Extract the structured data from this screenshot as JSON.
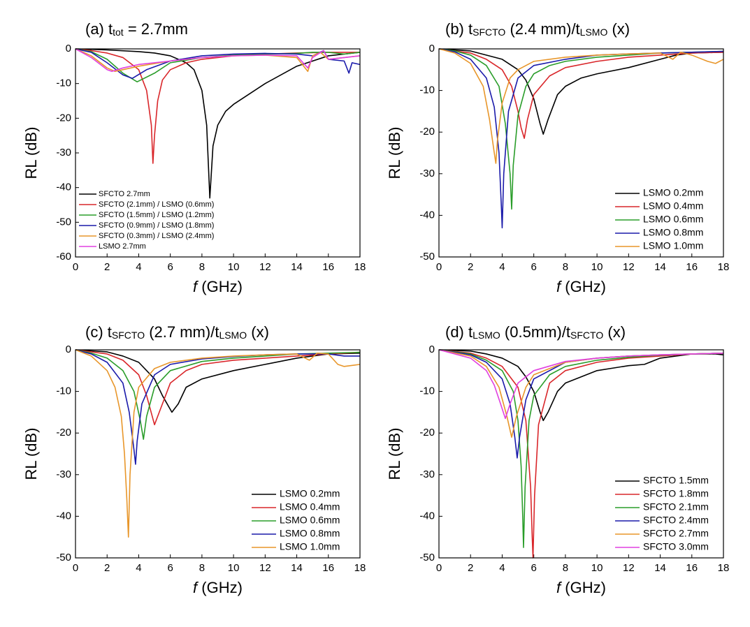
{
  "chart_data": [
    {
      "type": "line",
      "title": [
        "(a) t",
        "tot",
        " = 2.7mm"
      ],
      "xlabel": [
        "f",
        " (GHz)"
      ],
      "ylabel": "RL (dB)",
      "xlim": [
        0,
        18
      ],
      "ylim": [
        -60,
        0
      ],
      "xticks": [
        0,
        2,
        4,
        6,
        8,
        10,
        12,
        14,
        16,
        18
      ],
      "yticks": [
        0,
        -10,
        -20,
        -30,
        -40,
        -50,
        -60
      ],
      "legend": "lower left",
      "series": [
        {
          "name": "SFCTO 2.7mm",
          "color": "#000000",
          "x": [
            0,
            2,
            4,
            5,
            6,
            7,
            7.5,
            8,
            8.3,
            8.5,
            8.7,
            9,
            9.5,
            10,
            11,
            12,
            14,
            16,
            18
          ],
          "values": [
            0,
            -0.3,
            -0.8,
            -1.2,
            -2,
            -4,
            -6,
            -12,
            -22,
            -43,
            -28,
            -22,
            -18,
            -16,
            -13,
            -10,
            -5,
            -2,
            -1
          ]
        },
        {
          "name": "SFCTO (2.1mm) / LSMO (0.6mm)",
          "color": "#d9262a",
          "x": [
            0,
            1,
            2,
            3,
            4,
            4.5,
            4.8,
            4.9,
            5.0,
            5.2,
            5.5,
            6,
            7,
            8,
            10,
            12,
            14,
            16,
            18
          ],
          "values": [
            0,
            -0.5,
            -1.2,
            -2.5,
            -6,
            -12,
            -22,
            -33,
            -25,
            -15,
            -9,
            -6,
            -4,
            -3,
            -2,
            -1.5,
            -1.2,
            -1,
            -1
          ]
        },
        {
          "name": "SFCTO (1.5mm) / LSMO (1.2mm)",
          "color": "#2a9d2a",
          "x": [
            0,
            1,
            2,
            3,
            3.9,
            5,
            6,
            8,
            10,
            12,
            14,
            15,
            16,
            17,
            18
          ],
          "values": [
            0,
            -0.8,
            -3,
            -7,
            -9.5,
            -7,
            -4,
            -2.5,
            -1.8,
            -1.5,
            -1.3,
            -1,
            -1,
            -1.5,
            -1
          ]
        },
        {
          "name": "SFCTO (0.9mm) / LSMO (1.8mm)",
          "color": "#1a1aaa",
          "x": [
            0,
            1,
            2,
            3,
            3.6,
            4.5,
            6,
            8,
            10,
            12,
            14,
            15,
            15.7,
            16,
            17,
            17.3,
            17.5,
            18
          ],
          "values": [
            0,
            -1,
            -4,
            -7.5,
            -8.5,
            -6,
            -3.5,
            -2,
            -1.5,
            -1.3,
            -1.5,
            -2,
            -0.5,
            -3,
            -3.5,
            -7,
            -4,
            -4.5
          ]
        },
        {
          "name": "SFCTO (0.3mm) / LSMO (2.4mm)",
          "color": "#e8962a",
          "x": [
            0,
            1,
            2,
            2.5,
            3,
            4,
            6,
            8,
            10,
            12,
            14,
            14.7,
            15,
            15.5,
            16,
            17,
            18
          ],
          "values": [
            0,
            -2,
            -5.5,
            -6.5,
            -6,
            -5,
            -3.5,
            -2.5,
            -2,
            -1.8,
            -2.5,
            -6.5,
            -2,
            -1,
            -3,
            -2.5,
            -2
          ]
        },
        {
          "name": "LSMO 2.7mm",
          "color": "#e040e0",
          "x": [
            0,
            1,
            2,
            2.3,
            3,
            4,
            6,
            8,
            10,
            12,
            14,
            14.7,
            15,
            15.7,
            16,
            17,
            18
          ],
          "values": [
            0,
            -2.5,
            -6,
            -6.5,
            -5.5,
            -4.5,
            -3.5,
            -2.5,
            -2,
            -1.8,
            -2,
            -5.5,
            -2.5,
            -0.5,
            -3,
            -2.5,
            -2
          ]
        }
      ]
    },
    {
      "type": "line",
      "title": [
        "(b) t",
        "SFCTO",
        " (2.4 mm)/t",
        "LSMO",
        " (x)"
      ],
      "xlabel": [
        "f",
        " (GHz)"
      ],
      "ylabel": "RL (dB)",
      "xlim": [
        0,
        18
      ],
      "ylim": [
        -50,
        0
      ],
      "xticks": [
        0,
        2,
        4,
        6,
        8,
        10,
        12,
        14,
        16,
        18
      ],
      "yticks": [
        0,
        -10,
        -20,
        -30,
        -40,
        -50
      ],
      "legend": "lower right",
      "series": [
        {
          "name": "LSMO 0.2mm",
          "color": "#000000",
          "x": [
            0,
            2,
            4,
            5,
            5.5,
            6,
            6.4,
            6.6,
            6.9,
            7.5,
            8,
            9,
            10,
            12,
            14,
            15,
            16,
            18
          ],
          "values": [
            0,
            -0.5,
            -2.5,
            -5,
            -7.5,
            -12,
            -18,
            -20.5,
            -17,
            -11,
            -9,
            -7,
            -6,
            -4.5,
            -2.5,
            -1.5,
            -1,
            -0.8
          ]
        },
        {
          "name": "LSMO 0.4mm",
          "color": "#d9262a",
          "x": [
            0,
            2,
            3,
            4,
            4.6,
            5,
            5.2,
            5.4,
            5.6,
            6,
            7,
            8,
            10,
            12,
            14,
            16,
            18
          ],
          "values": [
            0,
            -1,
            -2.5,
            -5,
            -9,
            -15,
            -19,
            -21.5,
            -17,
            -11,
            -6.5,
            -4.5,
            -3,
            -2,
            -1.5,
            -1,
            -0.8
          ]
        },
        {
          "name": "LSMO 0.6mm",
          "color": "#2a9d2a",
          "x": [
            0,
            1,
            2,
            3,
            3.8,
            4.2,
            4.5,
            4.6,
            4.7,
            5,
            5.5,
            6,
            7,
            8,
            10,
            12,
            14,
            16,
            18
          ],
          "values": [
            0,
            -0.5,
            -1.5,
            -4,
            -9,
            -18,
            -30,
            -38.5,
            -28,
            -16,
            -9,
            -6,
            -4,
            -3,
            -2,
            -1.5,
            -1,
            -0.8,
            -0.6
          ]
        },
        {
          "name": "LSMO 0.8mm",
          "color": "#1a1aaa",
          "x": [
            0,
            1,
            2,
            3,
            3.5,
            3.8,
            3.95,
            4.0,
            4.1,
            4.4,
            5,
            6,
            8,
            10,
            12,
            14,
            16,
            18
          ],
          "values": [
            0,
            -0.7,
            -2.5,
            -7,
            -14,
            -25,
            -38,
            -43,
            -30,
            -15,
            -7,
            -4,
            -2.5,
            -1.5,
            -1.2,
            -1,
            -0.8,
            -0.6
          ]
        },
        {
          "name": "LSMO 1.0mm",
          "color": "#e8962a",
          "x": [
            0,
            1,
            2,
            2.8,
            3.2,
            3.5,
            3.6,
            3.7,
            4,
            4.5,
            5,
            6,
            8,
            10,
            12,
            14,
            14.8,
            15.3,
            16,
            17,
            17.5,
            18
          ],
          "values": [
            0,
            -1,
            -3.5,
            -9,
            -17,
            -25,
            -27.5,
            -22,
            -13,
            -7,
            -5,
            -3,
            -2,
            -1.5,
            -1.2,
            -1,
            -2.5,
            -0.8,
            -1.5,
            -3,
            -3.5,
            -2.5
          ]
        }
      ]
    },
    {
      "type": "line",
      "title": [
        "(c) t",
        "SFCTO",
        " (2.7 mm)/t",
        "LSMO",
        " (x)"
      ],
      "xlabel": [
        "f",
        " (GHz)"
      ],
      "ylabel": "RL (dB)",
      "xlim": [
        0,
        18
      ],
      "ylim": [
        -50,
        0
      ],
      "xticks": [
        0,
        2,
        4,
        6,
        8,
        10,
        12,
        14,
        16,
        18
      ],
      "yticks": [
        0,
        -10,
        -20,
        -30,
        -40,
        -50
      ],
      "legend": "lower right",
      "series": [
        {
          "name": "LSMO 0.2mm",
          "color": "#000000",
          "x": [
            0,
            2,
            3,
            4,
            5,
            5.5,
            6.1,
            6.5,
            7,
            8,
            10,
            12,
            14,
            16,
            18
          ],
          "values": [
            0,
            -0.5,
            -1.5,
            -3,
            -7,
            -11,
            -15,
            -13,
            -9,
            -7,
            -5,
            -3.5,
            -2,
            -1,
            -0.8
          ]
        },
        {
          "name": "LSMO 0.4mm",
          "color": "#d9262a",
          "x": [
            0,
            2,
            3,
            4,
            4.5,
            5,
            5.3,
            6,
            7,
            8,
            10,
            12,
            14,
            16,
            18
          ],
          "values": [
            0,
            -1,
            -2.5,
            -6,
            -11,
            -18,
            -15,
            -8,
            -5,
            -3.5,
            -2.5,
            -2,
            -1.5,
            -1,
            -0.6
          ]
        },
        {
          "name": "LSMO 0.6mm",
          "color": "#2a9d2a",
          "x": [
            0,
            1,
            2,
            3,
            3.7,
            4.1,
            4.3,
            4.5,
            5,
            6,
            8,
            10,
            12,
            14,
            16,
            18
          ],
          "values": [
            0,
            -0.8,
            -2,
            -5,
            -10,
            -17,
            -21.5,
            -16,
            -9,
            -5,
            -2.8,
            -2,
            -1.5,
            -1,
            -0.8,
            -0.6
          ]
        },
        {
          "name": "LSMO 0.8mm",
          "color": "#1a1aaa",
          "x": [
            0,
            1,
            2,
            3,
            3.4,
            3.7,
            3.8,
            3.9,
            4.2,
            5,
            6,
            8,
            10,
            12,
            14,
            16,
            17,
            18
          ],
          "values": [
            0,
            -1,
            -3,
            -8,
            -15,
            -24,
            -27.5,
            -22,
            -13,
            -6,
            -3.5,
            -2.2,
            -1.6,
            -1.2,
            -1,
            -1,
            -1.5,
            -1.5
          ]
        },
        {
          "name": "LSMO 1.0mm",
          "color": "#e8962a",
          "x": [
            0,
            1,
            2,
            2.5,
            2.9,
            3.1,
            3.25,
            3.35,
            3.45,
            3.7,
            4,
            5,
            6,
            8,
            10,
            12,
            14,
            14.8,
            15.3,
            16,
            16.6,
            17,
            18
          ],
          "values": [
            0,
            -1.5,
            -5,
            -9,
            -16,
            -25,
            -36,
            -45,
            -30,
            -15,
            -9,
            -4.5,
            -3,
            -2,
            -1.5,
            -1.2,
            -1,
            -2.5,
            -0.8,
            -1,
            -3.5,
            -4,
            -3.5
          ]
        }
      ]
    },
    {
      "type": "line",
      "title": [
        "(d) t",
        "LSMO",
        " (0.5mm)/t",
        "SFCTO",
        " (x)"
      ],
      "xlabel": [
        "f",
        " (GHz)"
      ],
      "ylabel": "RL (dB)",
      "xlim": [
        0,
        18
      ],
      "ylim": [
        -50,
        0
      ],
      "xticks": [
        0,
        2,
        4,
        6,
        8,
        10,
        12,
        14,
        16,
        18
      ],
      "yticks": [
        0,
        -10,
        -20,
        -30,
        -40,
        -50
      ],
      "legend": "lower right",
      "series": [
        {
          "name": "SFCTO 1.5mm",
          "color": "#000000",
          "x": [
            0,
            2,
            3,
            4,
            5,
            5.5,
            6,
            6.4,
            6.6,
            6.9,
            7.5,
            8,
            10,
            12,
            13,
            14,
            16,
            17.5,
            18
          ],
          "values": [
            0,
            -0.3,
            -1,
            -2,
            -4,
            -6.5,
            -10,
            -15,
            -17,
            -15,
            -10,
            -8,
            -5,
            -3.8,
            -3.5,
            -2,
            -1,
            -1,
            -1.2
          ]
        },
        {
          "name": "SFCTO 1.8mm",
          "color": "#d9262a",
          "x": [
            0,
            2,
            3,
            4,
            5,
            5.5,
            5.8,
            5.9,
            5.95,
            6.05,
            6.3,
            7,
            8,
            10,
            12,
            14,
            16,
            18
          ],
          "values": [
            0,
            -0.8,
            -2,
            -4,
            -9,
            -17,
            -33,
            -45,
            -50,
            -35,
            -18,
            -8,
            -5,
            -3,
            -2,
            -1.5,
            -1,
            -0.8
          ]
        },
        {
          "name": "SFCTO 2.1mm",
          "color": "#2a9d2a",
          "x": [
            0,
            2,
            3,
            4,
            4.7,
            5,
            5.2,
            5.3,
            5.35,
            5.45,
            5.7,
            6,
            7,
            8,
            10,
            12,
            14,
            16,
            18
          ],
          "values": [
            0,
            -1,
            -2.5,
            -5,
            -10,
            -17,
            -28,
            -40,
            -47.5,
            -33,
            -17,
            -11,
            -6,
            -4,
            -2.5,
            -1.8,
            -1.3,
            -1,
            -0.8
          ]
        },
        {
          "name": "SFCTO 2.4mm",
          "color": "#1a1aaa",
          "x": [
            0,
            2,
            3,
            4,
            4.5,
            4.8,
            4.95,
            5.1,
            5.5,
            6,
            8,
            10,
            12,
            14,
            16,
            18
          ],
          "values": [
            0,
            -1.2,
            -3,
            -7,
            -13,
            -21,
            -26,
            -21,
            -12,
            -7,
            -3,
            -2,
            -1.5,
            -1.2,
            -1,
            -0.8
          ]
        },
        {
          "name": "SFCTO 2.7mm",
          "color": "#e8962a",
          "x": [
            0,
            2,
            3,
            3.8,
            4.3,
            4.6,
            4.9,
            5.5,
            6,
            8,
            10,
            12,
            14,
            16,
            18
          ],
          "values": [
            0,
            -1.5,
            -4,
            -9,
            -16,
            -21,
            -16,
            -9,
            -6,
            -3,
            -2,
            -1.5,
            -1.2,
            -1,
            -0.8
          ]
        },
        {
          "name": "SFCTO 3.0mm",
          "color": "#e040e0",
          "x": [
            0,
            2,
            3,
            3.5,
            3.9,
            4.2,
            4.5,
            5,
            6,
            8,
            10,
            12,
            14,
            16,
            18
          ],
          "values": [
            0,
            -2,
            -5,
            -8.5,
            -13,
            -16.5,
            -13,
            -8,
            -5,
            -2.8,
            -2,
            -1.5,
            -1.2,
            -1,
            -0.8
          ]
        }
      ]
    }
  ]
}
